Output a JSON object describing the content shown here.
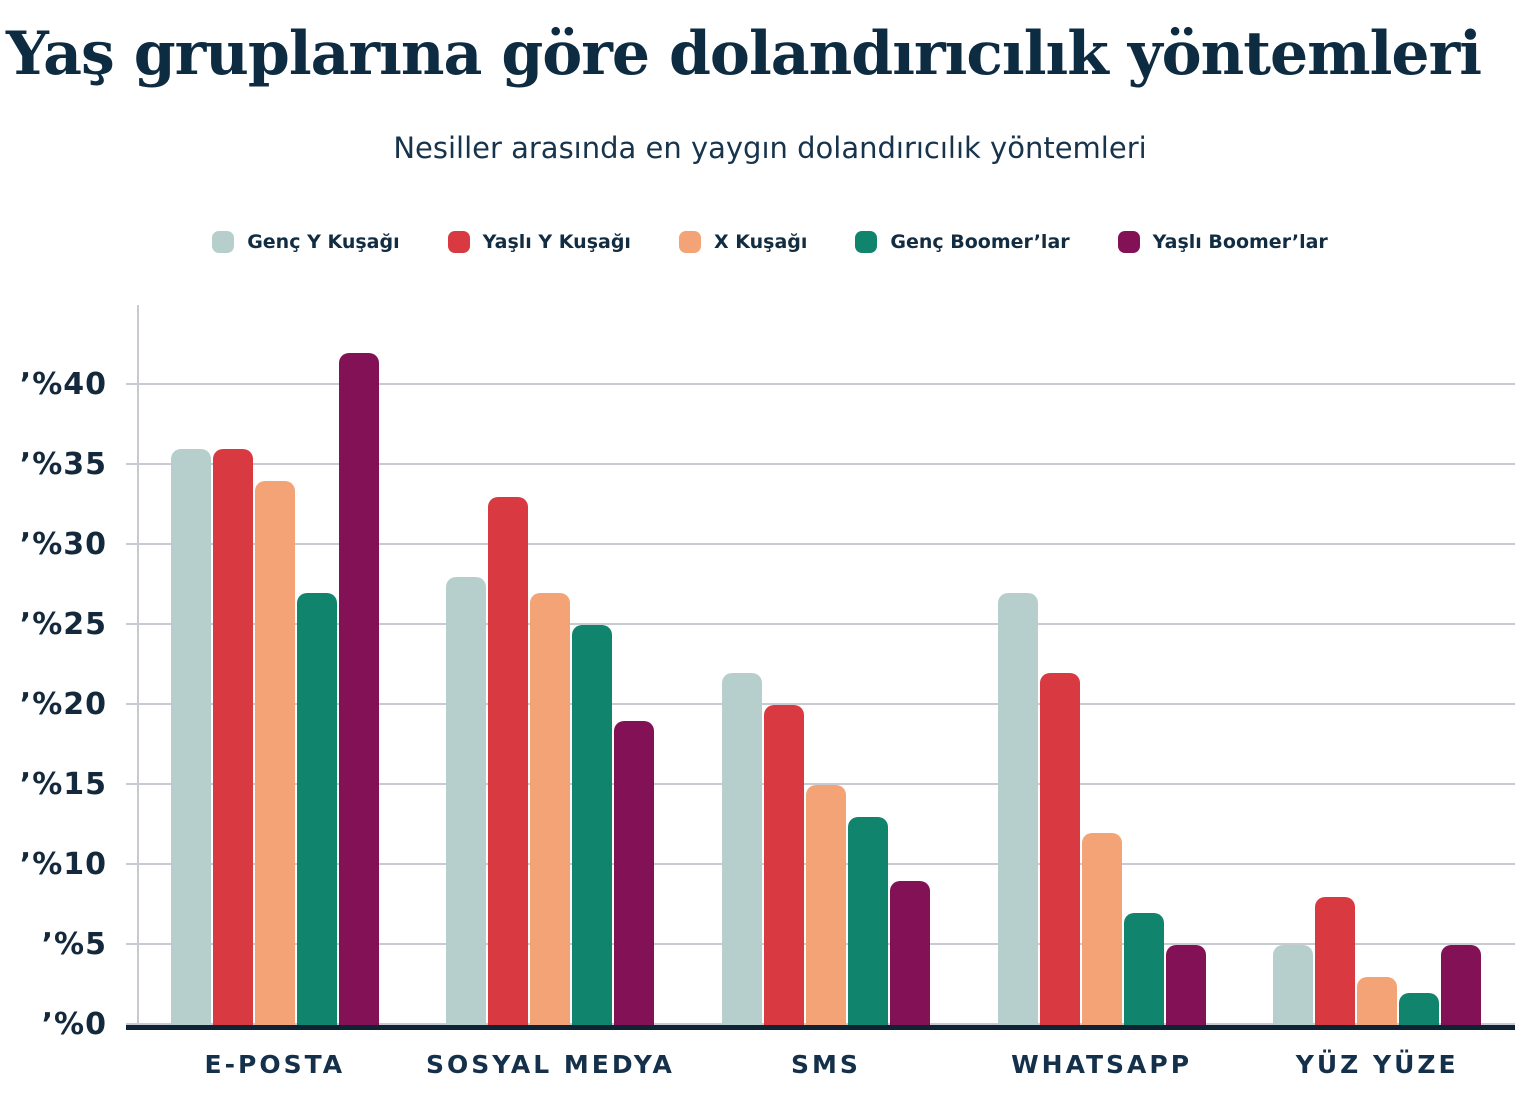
{
  "title": "Yaş gruplarına göre dolandırıcılık yöntemleri",
  "subtitle": "Nesiller arasında en yaygın dolandırıcılık yöntemleri",
  "chart_data": {
    "type": "bar",
    "title": "Yaş gruplarına göre dolandırıcılık yöntemleri",
    "subtitle": "Nesiller arasında en yaygın dolandırıcılık yöntemleri",
    "xlabel": "",
    "ylabel": "",
    "legend_position": "top",
    "grid": true,
    "ylim": [
      0,
      45
    ],
    "unit": "percent",
    "categories": [
      "E-POSTA",
      "SOSYAL MEDYA",
      "SMS",
      "WHATSAPP",
      "YÜZ YÜZE"
    ],
    "series": [
      {
        "name": "Genç Y Kuşağı",
        "color": "#B6CFCD",
        "values": [
          36,
          28,
          22,
          27,
          5
        ]
      },
      {
        "name": "Yaşlı Y Kuşağı",
        "color": "#D93940",
        "values": [
          36,
          33,
          20,
          22,
          8
        ]
      },
      {
        "name": "X Kuşağı",
        "color": "#F4A376",
        "values": [
          34,
          27,
          15,
          12,
          3
        ]
      },
      {
        "name": "Genç Boomer’lar",
        "color": "#10846D",
        "values": [
          27,
          25,
          13,
          7,
          2
        ]
      },
      {
        "name": "Yaşlı Boomer’lar",
        "color": "#821155",
        "values": [
          42,
          19,
          9,
          5,
          5
        ]
      }
    ],
    "yticks": [
      {
        "label": "’%0",
        "value": 0
      },
      {
        "label": "’%5",
        "value": 5
      },
      {
        "label": "’%10",
        "value": 10
      },
      {
        "label": "’%15",
        "value": 15
      },
      {
        "label": "’%20",
        "value": 20
      },
      {
        "label": "’%25",
        "value": 25
      },
      {
        "label": "’%30",
        "value": 30
      },
      {
        "label": "’%35",
        "value": 35
      },
      {
        "label": "’%40",
        "value": 40
      }
    ],
    "colors": {
      "title_text": "#0D2B41",
      "label_text": "#14293C",
      "gridline": "#C7CBD1",
      "axis_line": "#0E2334",
      "background": "#FFFFFF"
    }
  }
}
